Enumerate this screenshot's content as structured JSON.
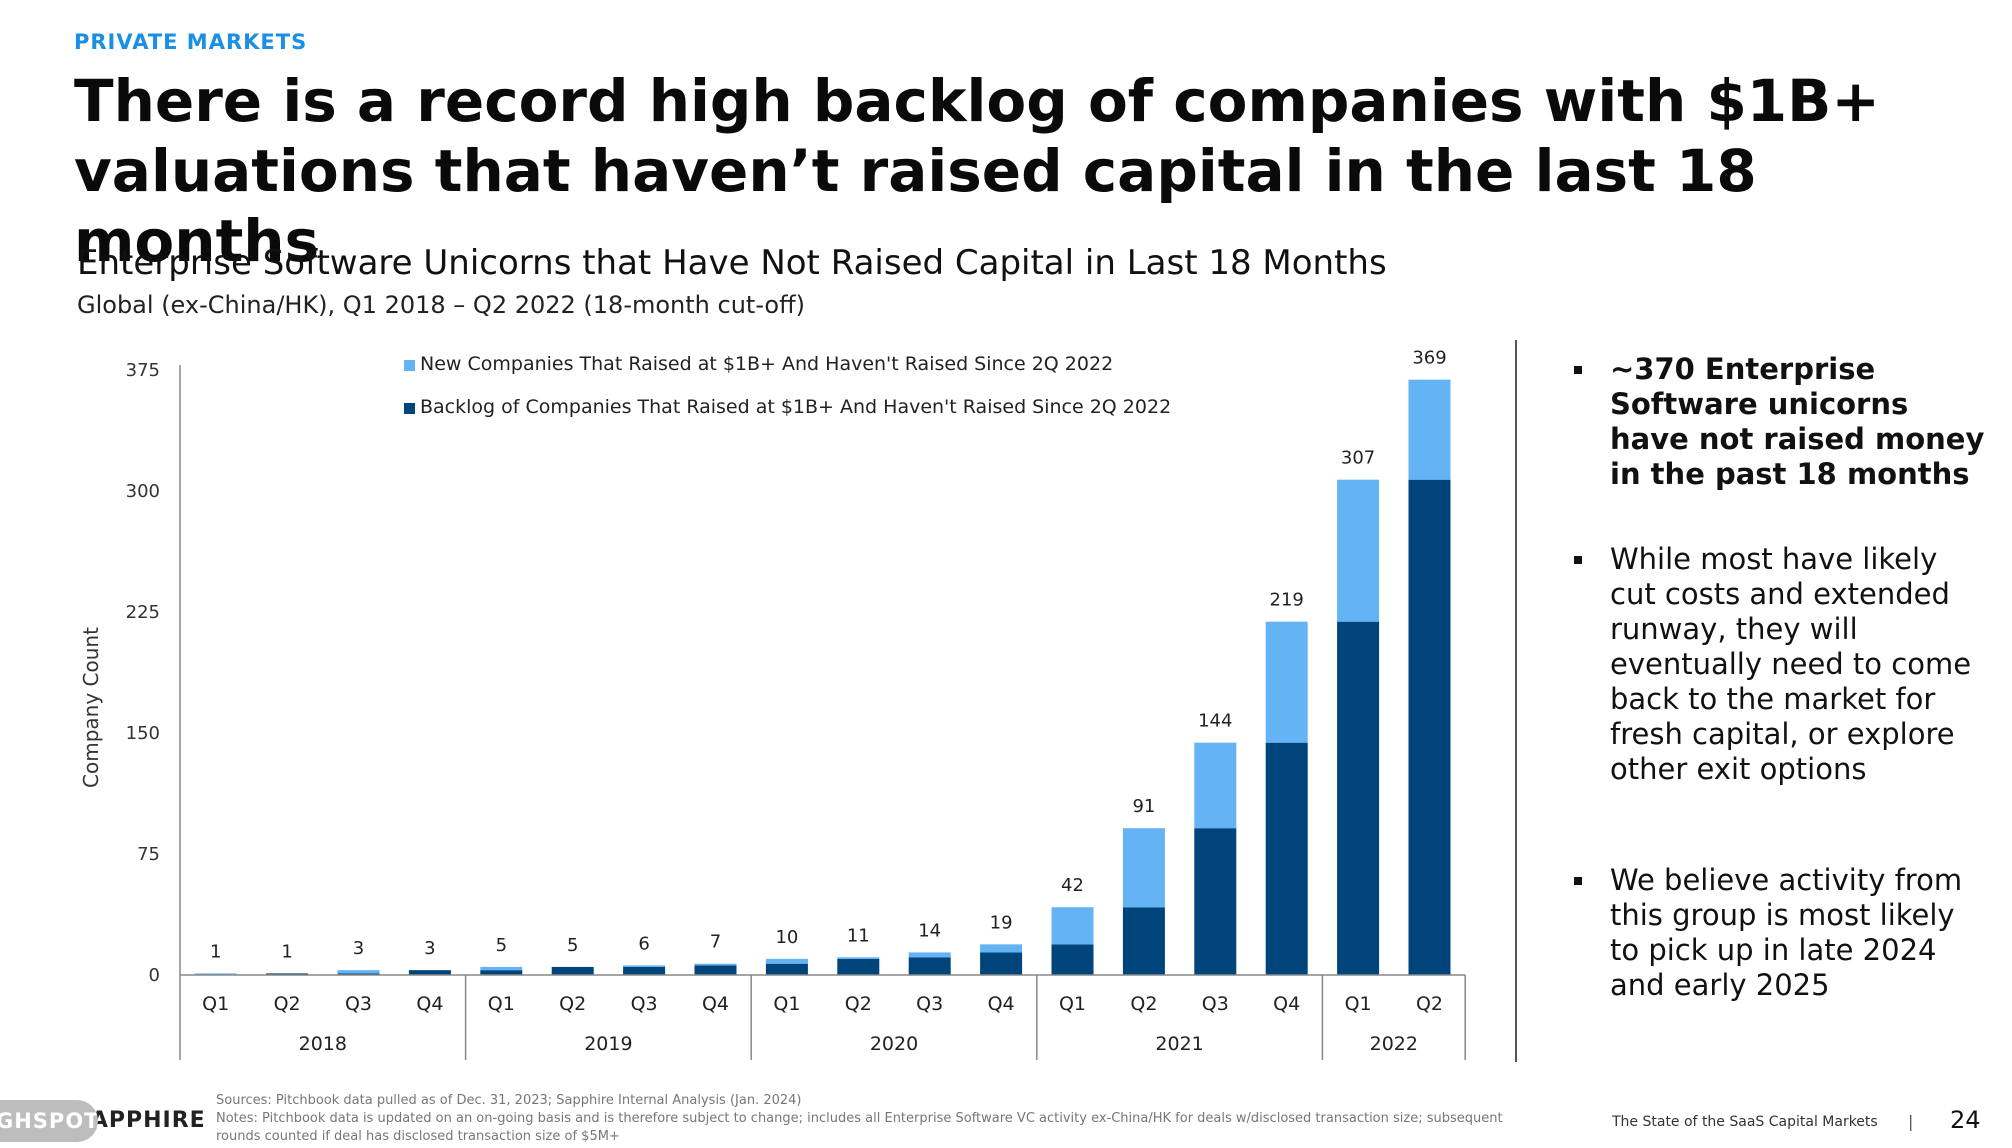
{
  "header": {
    "eyebrow": "PRIVATE MARKETS",
    "title": "There is a record high backlog of companies with $1B+ valuations that haven’t raised capital in the last 18 months"
  },
  "chart_data": {
    "type": "bar",
    "stacked": true,
    "title": "Enterprise Software Unicorns that Have Not Raised Capital in Last 18 Months",
    "subtitle": "Global (ex-China/HK), Q1 2018 – Q2 2022 (18-month cut-off)",
    "ylabel": "Company Count",
    "ylim": [
      0,
      375
    ],
    "yticks": [
      0,
      75,
      150,
      225,
      300,
      375
    ],
    "categories": [
      "Q1",
      "Q2",
      "Q3",
      "Q4",
      "Q1",
      "Q2",
      "Q3",
      "Q4",
      "Q1",
      "Q2",
      "Q3",
      "Q4",
      "Q1",
      "Q2",
      "Q3",
      "Q4",
      "Q1",
      "Q2"
    ],
    "year_groups": [
      {
        "label": "2018",
        "count": 4
      },
      {
        "label": "2019",
        "count": 4
      },
      {
        "label": "2020",
        "count": 4
      },
      {
        "label": "2021",
        "count": 4
      },
      {
        "label": "2022",
        "count": 2
      }
    ],
    "series": [
      {
        "name": "Backlog of Companies That Raised at $1B+ And Haven't Raised Since 2Q 2022",
        "color": "#00447c",
        "values": [
          0,
          1,
          1,
          3,
          3,
          5,
          5,
          6,
          7,
          10,
          11,
          14,
          19,
          42,
          91,
          144,
          219,
          307
        ]
      },
      {
        "name": "New Companies That Raised at $1B+ And Haven't Raised Since 2Q 2022",
        "color": "#63b3f5",
        "values": [
          1,
          0,
          2,
          0,
          2,
          0,
          1,
          1,
          3,
          1,
          3,
          5,
          23,
          49,
          53,
          75,
          88,
          62
        ]
      }
    ],
    "totals": [
      1,
      1,
      3,
      3,
      5,
      5,
      6,
      7,
      10,
      11,
      14,
      19,
      42,
      91,
      144,
      219,
      307,
      369
    ],
    "legend": "top-left",
    "grid": false
  },
  "bullets": [
    "~370 Enterprise Software unicorns have not raised money in the past 18 months",
    "While most have likely cut costs and extended runway, they will eventually need to come back to the market for fresh capital, or explore other exit options",
    "We believe activity from this group is most likely to pick up in late 2024 and early 2025"
  ],
  "footer": {
    "logo_overlay": "GHSPOT",
    "logo": "SAPPHIRE",
    "sources": "Sources: Pitchbook data pulled as of Dec. 31, 2023; Sapphire Internal Analysis (Jan. 2024)",
    "notes": "Notes: Pitchbook data is updated on an on-going basis and is therefore subject to change; includes all Enterprise Software VC activity ex-China/HK for deals w/disclosed transaction size; subsequent rounds counted if deal has disclosed transaction size of $5M+",
    "report_name": "The State of the SaaS Capital Markets",
    "separator": "|",
    "page_number": "24"
  }
}
